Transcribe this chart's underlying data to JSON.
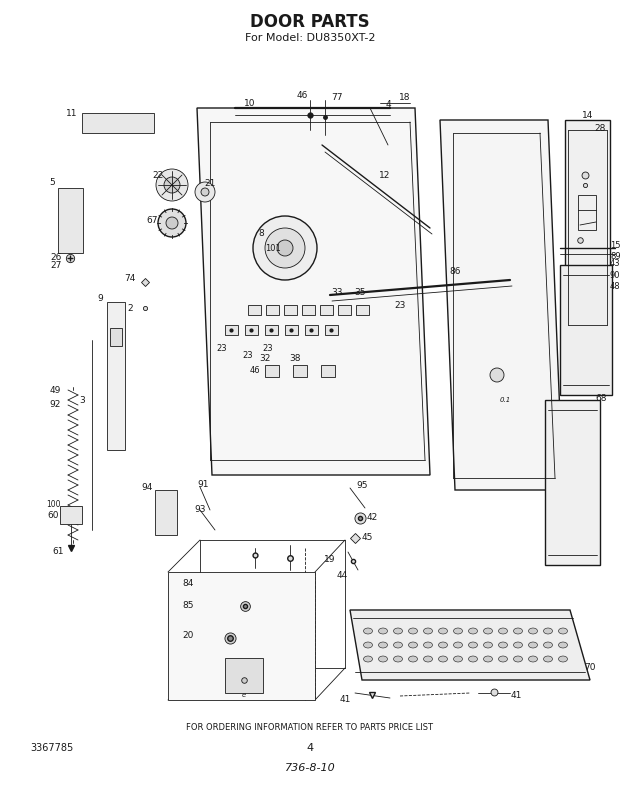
{
  "title": "DOOR PARTS",
  "subtitle": "For Model: DU8350XT-2",
  "footer_text": "FOR ORDERING INFORMATION REFER TO PARTS PRICE LIST",
  "part_number_left": "3367785",
  "page_number": "4",
  "revision": "736-8-10",
  "bg_color": "#ffffff",
  "fg_color": "#1a1a1a",
  "figsize": [
    6.2,
    7.89
  ],
  "dpi": 100
}
